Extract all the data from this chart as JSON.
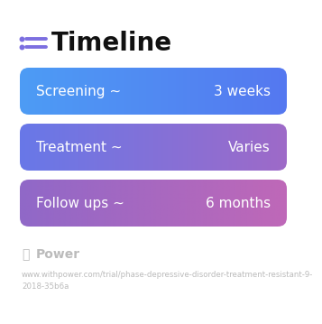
{
  "title": "Timeline",
  "title_fontsize": 20,
  "title_color": "#111111",
  "icon_color": "#7c6fe0",
  "background_color": "#ffffff",
  "rows": [
    {
      "left_label": "Screening ~",
      "right_label": "3 weeks",
      "gradient_left": "#4d9cf5",
      "gradient_right": "#5578f0"
    },
    {
      "left_label": "Treatment ~",
      "right_label": "Varies",
      "gradient_left": "#6878e8",
      "gradient_right": "#9e6ac8"
    },
    {
      "left_label": "Follow ups ~",
      "right_label": "6 months",
      "gradient_left": "#9068c8",
      "gradient_right": "#bf68b8"
    }
  ],
  "label_fontsize": 11,
  "label_color": "#ffffff",
  "footer_text": "Power",
  "footer_url": "www.withpower.com/trial/phase-depressive-disorder-treatment-resistant-9-\n2018-35b6a",
  "footer_fontsize": 6.2,
  "footer_color": "#bbbbbb"
}
